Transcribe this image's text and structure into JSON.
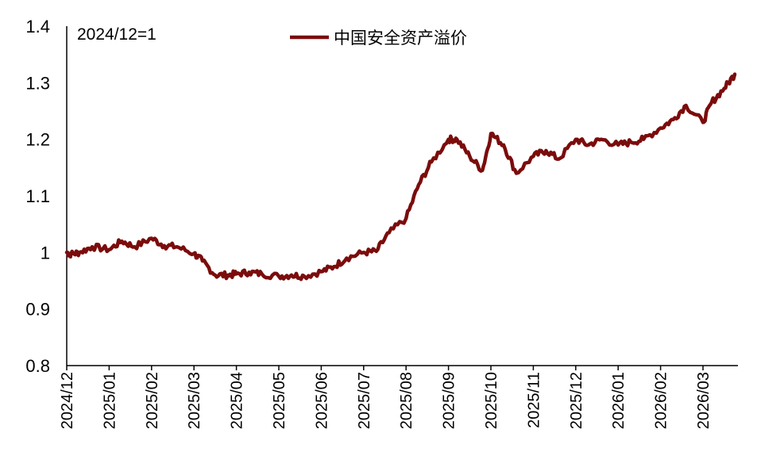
{
  "chart_data": {
    "type": "line",
    "title": "",
    "xlabel": "",
    "ylabel": "",
    "annotation": "2024/12=1",
    "ylim": [
      0.8,
      1.4
    ],
    "yticks": [
      "0.8",
      "0.9",
      "1",
      "1.1",
      "1.2",
      "1.3",
      "1.4"
    ],
    "categories": [
      "2024/12",
      "2025/01",
      "2025/02",
      "2025/03",
      "2025/04",
      "2025/05",
      "2025/06",
      "2025/07",
      "2025/08",
      "2025/09",
      "2025/10",
      "2025/11",
      "2025/12",
      "2026/01",
      "2026/02",
      "2026/03"
    ],
    "legend": {
      "position": "top-center"
    },
    "colors": {
      "series": "#7b0c0c",
      "axis": "#000000"
    },
    "series": [
      {
        "name": "中国安全资产溢价",
        "x": [
          "2024/12",
          "2024/12.1",
          "2024/12.3",
          "2024/12.6",
          "2025/01",
          "2025/01.3",
          "2025/01.6",
          "2025/02",
          "2025/02.3",
          "2025/02.6",
          "2025/03",
          "2025/03.2",
          "2025/03.5",
          "2025/03.8",
          "2025/04",
          "2025/04.3",
          "2025/04.6",
          "2025/05",
          "2025/05.3",
          "2025/05.6",
          "2025/06",
          "2025/06.3",
          "2025/06.6",
          "2025/07",
          "2025/07.3",
          "2025/07.6",
          "2025/08",
          "2025/08.3",
          "2025/08.6",
          "2025/09",
          "2025/09.2",
          "2025/09.5",
          "2025/09.8",
          "2025/10",
          "2025/10.3",
          "2025/10.6",
          "2025/11",
          "2025/11.3",
          "2025/11.6",
          "2025/12",
          "2025/12.3",
          "2025/12.6",
          "2026/01",
          "2026/01.3",
          "2026/01.6",
          "2026/02",
          "2026/02.3",
          "2026/02.6",
          "2026/03",
          "2026/03.2",
          "2026/03.5",
          "2026/03.8"
        ],
        "x_num": [
          0,
          0.1,
          0.3,
          0.6,
          1.0,
          1.3,
          1.6,
          2.0,
          2.3,
          2.6,
          3.0,
          3.2,
          3.5,
          3.8,
          4.0,
          4.3,
          4.6,
          5.0,
          5.3,
          5.6,
          6.0,
          6.3,
          6.6,
          7.0,
          7.3,
          7.6,
          8.0,
          8.3,
          8.6,
          9.0,
          9.2,
          9.5,
          9.8,
          10.0,
          10.3,
          10.6,
          11.0,
          11.3,
          11.6,
          12.0,
          12.3,
          12.6,
          13.0,
          13.3,
          13.6,
          14.0,
          14.3,
          14.6,
          15.0,
          15.2,
          15.5,
          15.75
        ],
        "values": [
          1.0,
          0.997,
          1.0,
          1.01,
          1.005,
          1.02,
          1.01,
          1.025,
          1.012,
          1.01,
          0.998,
          0.985,
          0.96,
          0.96,
          0.962,
          0.965,
          0.962,
          0.958,
          0.96,
          0.958,
          0.966,
          0.975,
          0.99,
          1.0,
          1.002,
          1.035,
          1.06,
          1.12,
          1.16,
          1.2,
          1.2,
          1.17,
          1.145,
          1.21,
          1.19,
          1.14,
          1.17,
          1.18,
          1.165,
          1.2,
          1.19,
          1.2,
          1.19,
          1.195,
          1.2,
          1.22,
          1.235,
          1.26,
          1.23,
          1.265,
          1.29,
          1.315
        ]
      }
    ]
  }
}
